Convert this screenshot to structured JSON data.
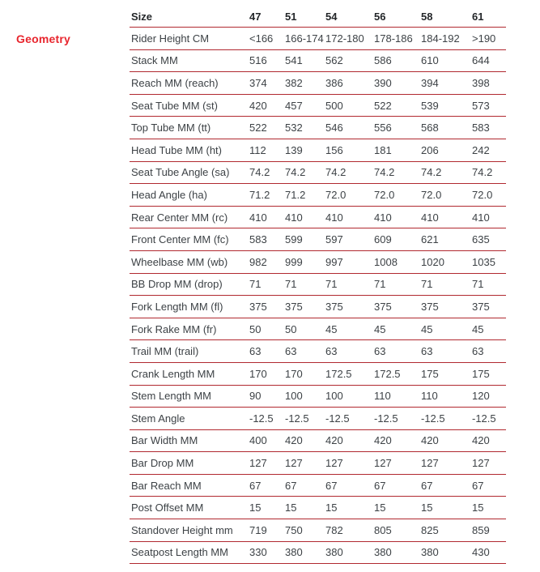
{
  "section": {
    "label": "Geometry"
  },
  "colors": {
    "accent_red": "#e8262e",
    "rule_red": "#b12930",
    "header_text": "#232629",
    "body_text": "#3d4246",
    "background": "#ffffff"
  },
  "table": {
    "header": [
      "Size",
      "47",
      "51",
      "54",
      "56",
      "58",
      "61"
    ],
    "rows": [
      {
        "label": "Rider Height CM",
        "values": [
          "<166",
          "166-174",
          "172-180",
          "178-186",
          "184-192",
          ">190"
        ]
      },
      {
        "label": "Stack MM",
        "values": [
          "516",
          "541",
          "562",
          "586",
          "610",
          "644"
        ]
      },
      {
        "label": "Reach MM (reach)",
        "values": [
          "374",
          "382",
          "386",
          "390",
          "394",
          "398"
        ]
      },
      {
        "label": "Seat Tube MM (st)",
        "values": [
          "420",
          "457",
          "500",
          "522",
          "539",
          "573"
        ]
      },
      {
        "label": "Top Tube MM (tt)",
        "values": [
          "522",
          "532",
          "546",
          "556",
          "568",
          "583"
        ]
      },
      {
        "label": "Head Tube MM (ht)",
        "values": [
          "112",
          "139",
          "156",
          "181",
          "206",
          "242"
        ]
      },
      {
        "label": "Seat Tube Angle (sa)",
        "values": [
          "74.2",
          "74.2",
          "74.2",
          "74.2",
          "74.2",
          "74.2"
        ]
      },
      {
        "label": "Head Angle (ha)",
        "values": [
          "71.2",
          "71.2",
          "72.0",
          "72.0",
          "72.0",
          "72.0"
        ]
      },
      {
        "label": "Rear Center MM (rc)",
        "values": [
          "410",
          "410",
          "410",
          "410",
          "410",
          "410"
        ]
      },
      {
        "label": "Front Center MM (fc)",
        "values": [
          "583",
          "599",
          "597",
          "609",
          "621",
          "635"
        ]
      },
      {
        "label": "Wheelbase MM (wb)",
        "values": [
          "982",
          "999",
          "997",
          "1008",
          "1020",
          "1035"
        ]
      },
      {
        "label": "BB Drop MM (drop)",
        "values": [
          "71",
          "71",
          "71",
          "71",
          "71",
          "71"
        ]
      },
      {
        "label": "Fork Length MM (fl)",
        "values": [
          "375",
          "375",
          "375",
          "375",
          "375",
          "375"
        ]
      },
      {
        "label": "Fork Rake MM (fr)",
        "values": [
          "50",
          "50",
          "45",
          "45",
          "45",
          "45"
        ]
      },
      {
        "label": "Trail MM (trail)",
        "values": [
          "63",
          "63",
          "63",
          "63",
          "63",
          "63"
        ]
      },
      {
        "label": "Crank Length MM",
        "values": [
          "170",
          "170",
          "172.5",
          "172.5",
          "175",
          "175"
        ]
      },
      {
        "label": "Stem Length MM",
        "values": [
          "90",
          "100",
          "100",
          "110",
          "110",
          "120"
        ]
      },
      {
        "label": "Stem Angle",
        "values": [
          "-12.5",
          "-12.5",
          "-12.5",
          "-12.5",
          "-12.5",
          "-12.5"
        ]
      },
      {
        "label": "Bar Width MM",
        "values": [
          "400",
          "420",
          "420",
          "420",
          "420",
          "420"
        ]
      },
      {
        "label": "Bar Drop MM",
        "values": [
          "127",
          "127",
          "127",
          "127",
          "127",
          "127"
        ]
      },
      {
        "label": "Bar Reach MM",
        "values": [
          "67",
          "67",
          "67",
          "67",
          "67",
          "67"
        ]
      },
      {
        "label": "Post Offset MM",
        "values": [
          "15",
          "15",
          "15",
          "15",
          "15",
          "15"
        ]
      },
      {
        "label": "Standover Height mm",
        "values": [
          "719",
          "750",
          "782",
          "805",
          "825",
          "859"
        ]
      },
      {
        "label": "Seatpost Length MM",
        "values": [
          "330",
          "380",
          "380",
          "380",
          "380",
          "430"
        ]
      }
    ]
  }
}
